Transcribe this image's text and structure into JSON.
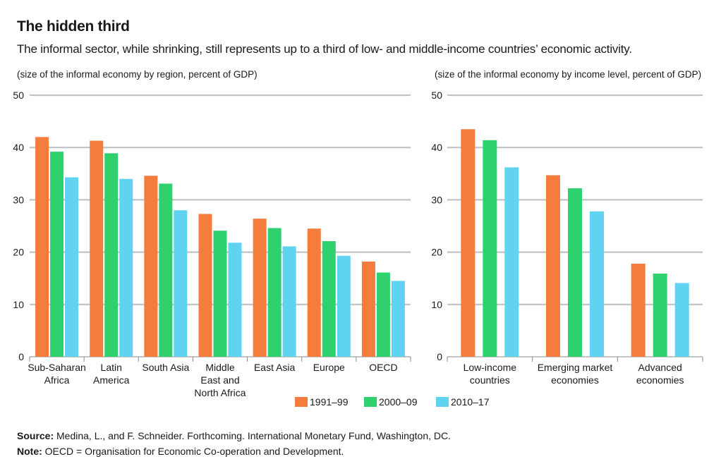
{
  "title": "The hidden third",
  "subtitle": "The informal sector, while shrinking, still represents up to a third of low- and middle-income countries’ economic activity.",
  "colors": {
    "s1": "#f47c3c",
    "s2": "#2fd16e",
    "s3": "#5fd3f0",
    "grid": "#bfc3c4",
    "axis": "#8a8a8a"
  },
  "legend": [
    "1991–99",
    "2000–09",
    "2010–17"
  ],
  "chart_data": [
    {
      "type": "bar",
      "title": "(size of the informal economy by region, percent of GDP)",
      "categories": [
        [
          "Sub-Saharan",
          "Africa"
        ],
        [
          "Latin",
          "America"
        ],
        [
          "South Asia"
        ],
        [
          "Middle",
          "East and",
          "North Africa"
        ],
        [
          "East Asia"
        ],
        [
          "Europe"
        ],
        [
          "OECD"
        ]
      ],
      "series": [
        {
          "name": "1991–99",
          "values": [
            42.0,
            41.3,
            34.6,
            27.3,
            26.4,
            24.5,
            18.2
          ]
        },
        {
          "name": "2000–09",
          "values": [
            39.2,
            38.9,
            33.1,
            24.1,
            24.6,
            22.1,
            16.1
          ]
        },
        {
          "name": "2010–17",
          "values": [
            34.3,
            34.0,
            28.0,
            21.8,
            21.1,
            19.3,
            14.5
          ]
        }
      ],
      "yticks": [
        "0",
        "10",
        "20",
        "30",
        "40",
        "50"
      ],
      "ylim": [
        0,
        50
      ],
      "grid": true
    },
    {
      "type": "bar",
      "title": "(size of the informal economy by income level, percent of GDP)",
      "categories": [
        [
          "Low-income",
          "countries"
        ],
        [
          "Emerging market",
          "economies"
        ],
        [
          "Advanced",
          "economies"
        ]
      ],
      "series": [
        {
          "name": "1991–99",
          "values": [
            43.5,
            34.7,
            17.8
          ]
        },
        {
          "name": "2000–09",
          "values": [
            41.4,
            32.2,
            15.9
          ]
        },
        {
          "name": "2010–17",
          "values": [
            36.2,
            27.8,
            14.1
          ]
        }
      ],
      "yticks": [
        "0",
        "10",
        "20",
        "30",
        "40",
        "50"
      ],
      "ylim": [
        0,
        50
      ],
      "grid": true
    }
  ],
  "source": {
    "label": "Source:",
    "text": "  Medina, L., and F. Schneider. Forthcoming. International Monetary Fund, Washington, DC."
  },
  "note": {
    "label": "Note:",
    "text": " OECD = Organisation for Economic Co-operation and Development."
  }
}
